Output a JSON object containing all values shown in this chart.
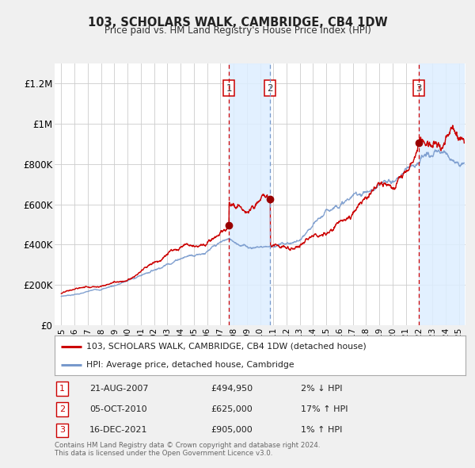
{
  "title": "103, SCHOLARS WALK, CAMBRIDGE, CB4 1DW",
  "subtitle": "Price paid vs. HM Land Registry's House Price Index (HPI)",
  "ylim": [
    0,
    1300000
  ],
  "xlim": [
    1994.5,
    2025.5
  ],
  "yticks": [
    0,
    200000,
    400000,
    600000,
    800000,
    1000000,
    1200000
  ],
  "ytick_labels": [
    "£0",
    "£200K",
    "£400K",
    "£600K",
    "£800K",
    "£1M",
    "£1.2M"
  ],
  "xticks": [
    1995,
    1996,
    1997,
    1998,
    1999,
    2000,
    2001,
    2002,
    2003,
    2004,
    2005,
    2006,
    2007,
    2008,
    2009,
    2010,
    2011,
    2012,
    2013,
    2014,
    2015,
    2016,
    2017,
    2018,
    2019,
    2020,
    2021,
    2022,
    2023,
    2024,
    2025
  ],
  "bg_color": "#f0f0f0",
  "plot_bg_color": "#ffffff",
  "grid_color": "#cccccc",
  "red_line_color": "#cc0000",
  "blue_line_color": "#7799cc",
  "sale_marker_color": "#990000",
  "dashed_line_color": "#cc0000",
  "dashed_blue_color": "#7799cc",
  "shade_color": "#ddeeff",
  "transaction1": {
    "date": 2007.64,
    "price": 494950,
    "label": "1",
    "year_label": "21-AUG-2007",
    "price_label": "£494,950",
    "hpi_label": "2% ↓ HPI"
  },
  "transaction2": {
    "date": 2010.76,
    "price": 625000,
    "label": "2",
    "year_label": "05-OCT-2010",
    "price_label": "£625,000",
    "hpi_label": "17% ↑ HPI"
  },
  "transaction3": {
    "date": 2021.96,
    "price": 905000,
    "label": "3",
    "year_label": "16-DEC-2021",
    "price_label": "£905,000",
    "hpi_label": "1% ↑ HPI"
  },
  "legend_red_label": "103, SCHOLARS WALK, CAMBRIDGE, CB4 1DW (detached house)",
  "legend_blue_label": "HPI: Average price, detached house, Cambridge",
  "footer": "Contains HM Land Registry data © Crown copyright and database right 2024.\nThis data is licensed under the Open Government Licence v3.0."
}
